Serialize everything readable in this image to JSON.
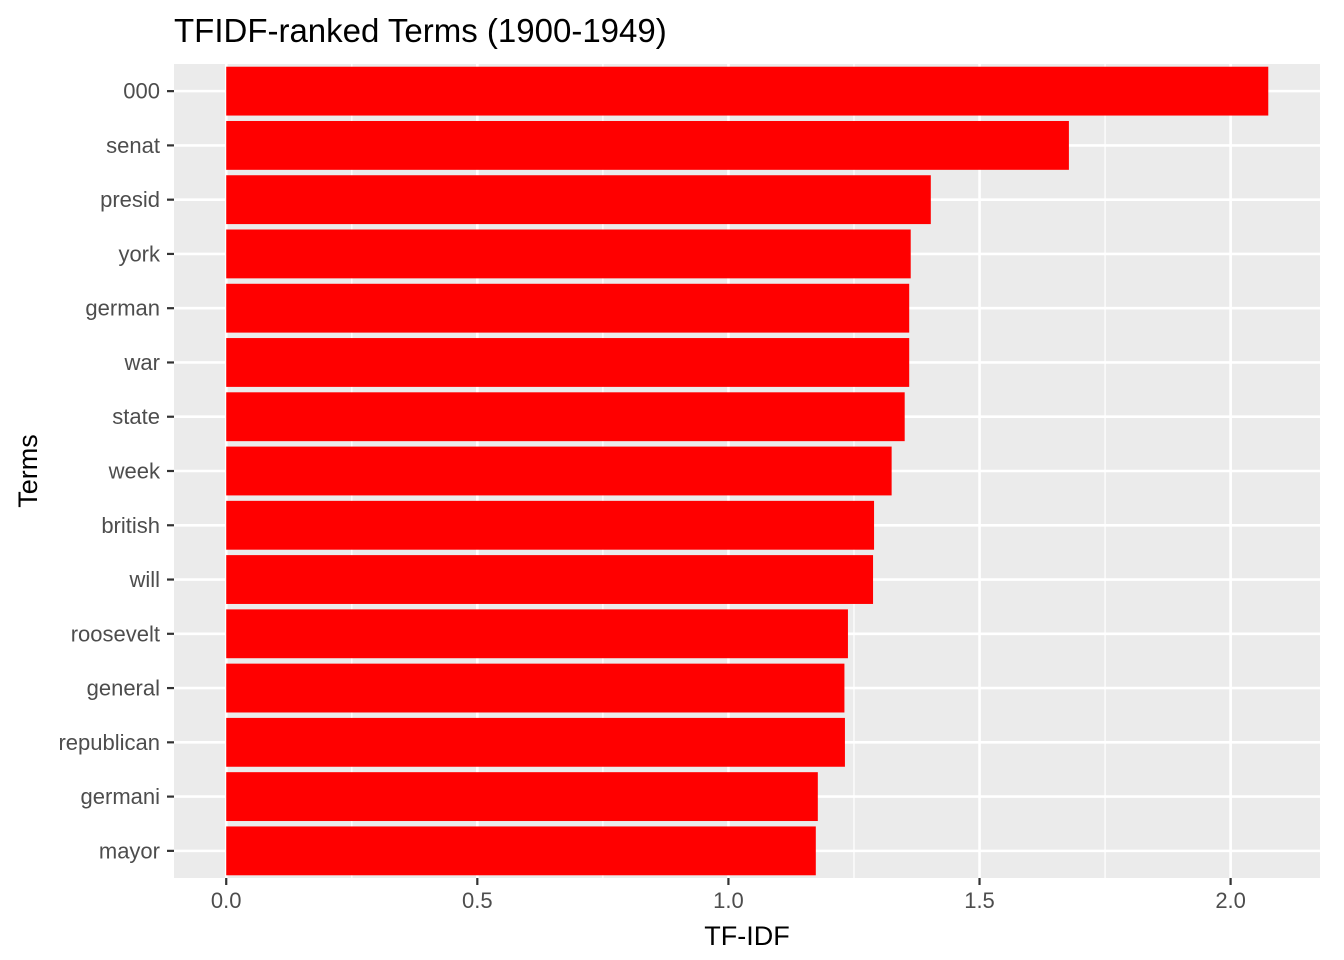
{
  "chart_data": {
    "type": "bar",
    "orientation": "horizontal",
    "title": "TFIDF-ranked Terms (1900-1949)",
    "xlabel": "TF-IDF",
    "ylabel": "Terms",
    "categories": [
      "000",
      "senat",
      "presid",
      "york",
      "german",
      "war",
      "state",
      "week",
      "british",
      "will",
      "roosevelt",
      "general",
      "republican",
      "germani",
      "mayor"
    ],
    "values": [
      2.075,
      1.678,
      1.403,
      1.363,
      1.36,
      1.36,
      1.351,
      1.325,
      1.29,
      1.288,
      1.238,
      1.231,
      1.232,
      1.178,
      1.174
    ],
    "xlim": [
      -0.104,
      2.178
    ],
    "xticks": [
      0.0,
      0.5,
      1.0,
      1.5,
      2.0
    ],
    "xtick_labels": [
      "0.0",
      "0.5",
      "1.0",
      "1.5",
      "2.0"
    ],
    "bar_color": "#ff0000",
    "panel_color": "#ebebeb",
    "grid": true,
    "legend": "none"
  }
}
